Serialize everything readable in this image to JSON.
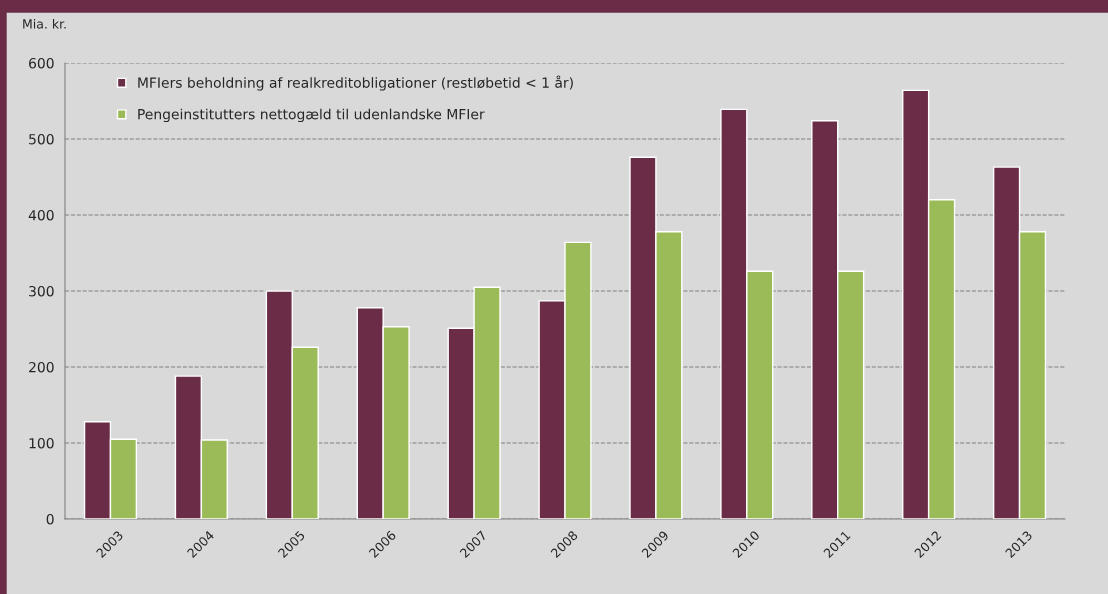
{
  "chart_data": {
    "type": "bar",
    "ylabel": "Mia. kr.",
    "categories": [
      "2003",
      "2004",
      "2005",
      "2006",
      "2007",
      "2008",
      "2009",
      "2010",
      "2011",
      "2012",
      "2013"
    ],
    "series": [
      {
        "name": "MFIers beholdning af realkreditobligationer (restløbetid < 1 år)",
        "color": "#6b2c47",
        "values": [
          128,
          188,
          300,
          278,
          251,
          287,
          476,
          539,
          524,
          564,
          463
        ]
      },
      {
        "name": "Pengeinstitutters nettogæld til udenlandske MFIer",
        "color": "#9bbb59",
        "values": [
          105,
          104,
          226,
          253,
          305,
          364,
          378,
          326,
          326,
          420,
          378
        ]
      }
    ],
    "ylim": [
      0,
      600
    ],
    "yticks": [
      0,
      100,
      200,
      300,
      400,
      500,
      600
    ],
    "grid": "y",
    "legend": "top left"
  }
}
